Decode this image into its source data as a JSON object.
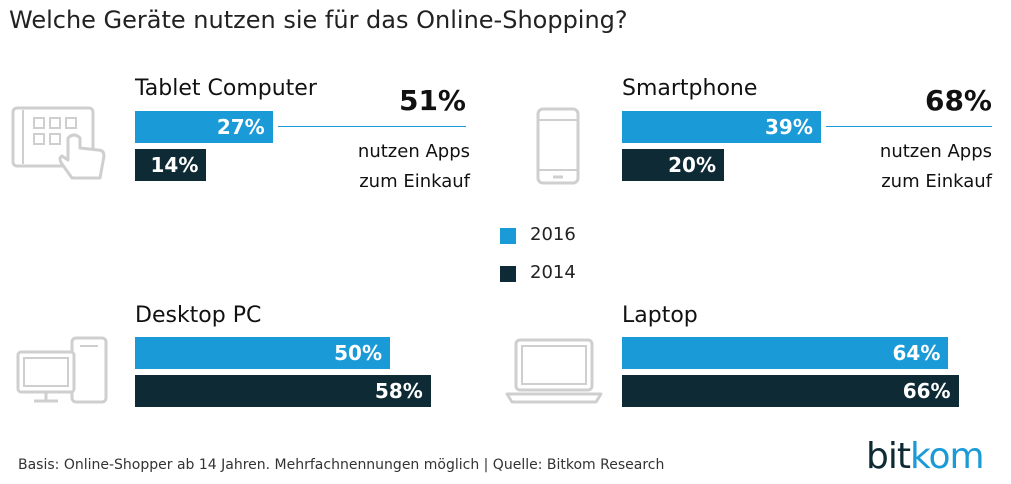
{
  "title": "Welche Geräte nutzen sie für das Online-Shopping?",
  "colors": {
    "series_2016": "#1a9bd7",
    "series_2014": "#0e2a35",
    "icon": "#cfcfcf"
  },
  "chart_data": {
    "type": "bar",
    "title": "Welche Geräte nutzen sie für das Online-Shopping?",
    "xlabel": "",
    "ylabel": "",
    "unit": "%",
    "xlim": [
      0,
      100
    ],
    "categories": [
      "Tablet Computer",
      "Smartphone",
      "Desktop PC",
      "Laptop"
    ],
    "series": [
      {
        "name": "2016",
        "values": [
          27,
          39,
          50,
          64
        ]
      },
      {
        "name": "2014",
        "values": [
          14,
          20,
          58,
          66
        ]
      }
    ],
    "labels": {
      "2016": [
        "27%",
        "39%",
        "50%",
        "64%"
      ],
      "2014": [
        "14%",
        "20%",
        "58%",
        "66%"
      ]
    },
    "annotations": [
      {
        "category": "Tablet Computer",
        "value": "51%",
        "line1": "nutzen Apps",
        "line2": "zum Einkauf"
      },
      {
        "category": "Smartphone",
        "value": "68%",
        "line1": "nutzen Apps",
        "line2": "zum Einkauf"
      }
    ],
    "legend": {
      "position": "center",
      "entries": [
        "2016",
        "2014"
      ]
    }
  },
  "icons": {
    "tablet": "tablet-touch-icon",
    "smartphone": "smartphone-icon",
    "desktop": "desktop-pc-icon",
    "laptop": "laptop-icon"
  },
  "footnote": "Basis: Online-Shopper ab 14 Jahren. Mehrfachnennungen möglich | Quelle: Bitkom Research",
  "logo": {
    "part1": "bit",
    "part2": "kom"
  }
}
